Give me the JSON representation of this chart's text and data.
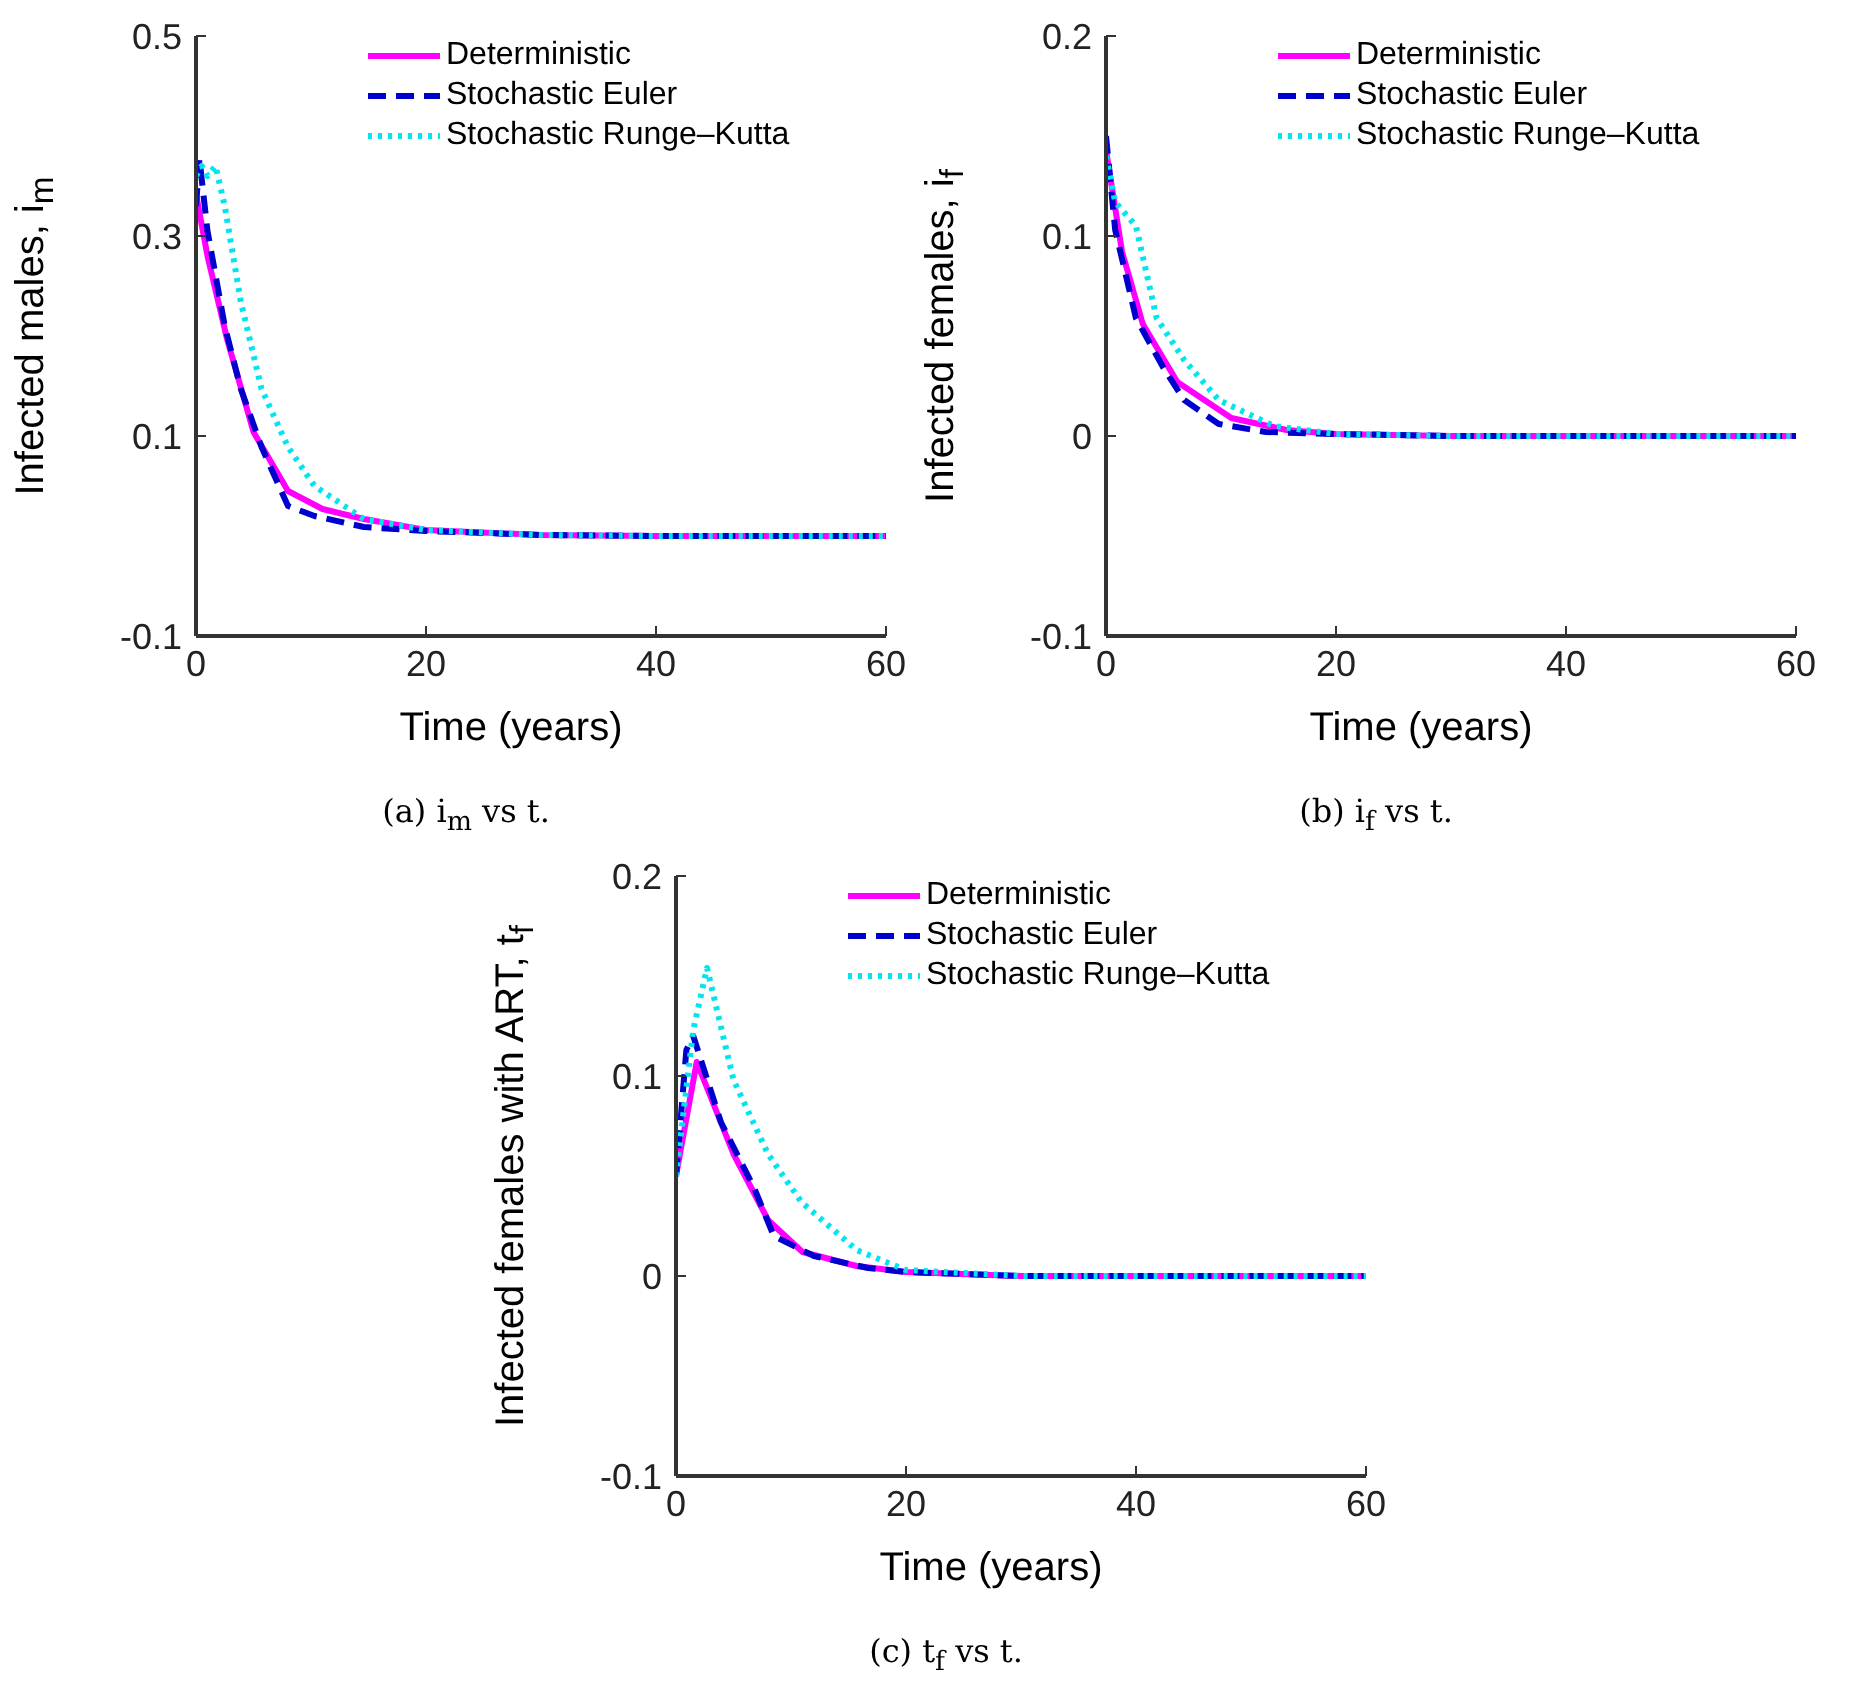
{
  "chart_data": [
    {
      "type": "line",
      "xlabel": "Time (years)",
      "ylabel": "Infected males, i$_{m}$",
      "xlim": [
        0,
        60
      ],
      "xticks": [
        0,
        20,
        40,
        60
      ],
      "ylim": [
        -0.1,
        0.5
      ],
      "yticks": [
        -0.1,
        0.1,
        0.3,
        0.5
      ],
      "legend": "top right",
      "grid": false,
      "annotations": [
        "(a) i$_{m}$ vs t."
      ],
      "series": [
        {
          "name": "Deterministic",
          "color": "#ff00ff",
          "line_style": "solid",
          "x": [
            0,
            1,
            2.7,
            5,
            8,
            11,
            14.6,
            20,
            30,
            40,
            50,
            60
          ],
          "values": [
            0.342,
            0.28,
            0.197,
            0.104,
            0.045,
            0.027,
            0.017,
            0.006,
            0.001,
            0,
            0,
            0
          ]
        },
        {
          "name": "Stochastic  Euler",
          "color": "#0000cd",
          "line_style": "dashed",
          "x": [
            0,
            0.3,
            1,
            2.5,
            3.9,
            5.7,
            8,
            10.3,
            14.6,
            20,
            30,
            40,
            50,
            60
          ],
          "values": [
            0.33,
            0.377,
            0.305,
            0.21,
            0.147,
            0.089,
            0.03,
            0.02,
            0.009,
            0.005,
            0.001,
            0,
            0,
            0
          ]
        },
        {
          "name": "Stochastic Runge–Kutta",
          "color": "#00e5ee",
          "line_style": "dotted",
          "x": [
            0,
            0.5,
            1,
            1.7,
            2.5,
            3.9,
            5.7,
            8,
            10.3,
            14.6,
            20,
            30,
            40,
            50,
            60
          ],
          "values": [
            0.36,
            0.37,
            0.36,
            0.37,
            0.33,
            0.234,
            0.147,
            0.089,
            0.05,
            0.017,
            0.006,
            0.001,
            0,
            0,
            0
          ]
        }
      ]
    },
    {
      "type": "line",
      "xlabel": "Time (years)",
      "ylabel": "Infected females, i$_{f}$",
      "xlim": [
        0,
        60
      ],
      "xticks": [
        0,
        20,
        40,
        60
      ],
      "ylim": [
        -0.1,
        0.2
      ],
      "yticks": [
        -0.1,
        0,
        0.1,
        0.2
      ],
      "legend": "top right",
      "grid": false,
      "annotations": [
        "(b) i$_{f}$ vs t."
      ],
      "series": [
        {
          "name": "Deterministic",
          "color": "#ff00ff",
          "line_style": "solid",
          "x": [
            0,
            1.4,
            3.2,
            6.2,
            10.9,
            15.7,
            20,
            30,
            40,
            50,
            60
          ],
          "values": [
            0.143,
            0.092,
            0.056,
            0.027,
            0.009,
            0.003,
            0.001,
            0,
            0,
            0,
            0
          ]
        },
        {
          "name": "Stochastic  Euler",
          "color": "#0000cd",
          "line_style": "dashed",
          "x": [
            0,
            0.8,
            2.6,
            5,
            6.8,
            9.8,
            13.9,
            20,
            30,
            40,
            50,
            60
          ],
          "values": [
            0.15,
            0.103,
            0.059,
            0.034,
            0.018,
            0.006,
            0.002,
            0.001,
            0,
            0,
            0,
            0
          ]
        },
        {
          "name": "Stochastic Runge–Kutta",
          "color": "#00e5ee",
          "line_style": "dotted",
          "x": [
            0,
            0.8,
            2.6,
            4.4,
            6.8,
            9.8,
            14.6,
            20,
            30,
            40,
            50,
            60
          ],
          "values": [
            0.14,
            0.117,
            0.105,
            0.059,
            0.038,
            0.018,
            0.005,
            0.001,
            0,
            0,
            0,
            0
          ]
        }
      ]
    },
    {
      "type": "line",
      "xlabel": "Time (years)",
      "ylabel": "Infected females with ART, t$_{f}$",
      "xlim": [
        0,
        60
      ],
      "xticks": [
        0,
        20,
        40,
        60
      ],
      "ylim": [
        -0.1,
        0.2
      ],
      "yticks": [
        -0.1,
        0,
        0.1,
        0.2
      ],
      "legend": "top right",
      "grid": false,
      "annotations": [
        "(c) t$_{f}$ vs t."
      ],
      "series": [
        {
          "name": "Deterministic",
          "color": "#ff00ff",
          "line_style": "solid",
          "x": [
            0,
            1.8,
            5,
            8,
            11,
            15.7,
            20,
            30,
            40,
            50,
            60
          ],
          "values": [
            0.05,
            0.107,
            0.061,
            0.028,
            0.012,
            0.005,
            0.002,
            0,
            0,
            0,
            0
          ]
        },
        {
          "name": "Stochastic  Euler",
          "color": "#0000cd",
          "line_style": "dashed",
          "x": [
            0,
            0.9,
            1.5,
            3.9,
            6.8,
            8.5,
            12,
            16.7,
            20,
            30,
            40,
            50,
            60
          ],
          "values": [
            0.05,
            0.113,
            0.12,
            0.077,
            0.044,
            0.02,
            0.01,
            0.004,
            0.002,
            0,
            0,
            0,
            0
          ]
        },
        {
          "name": "Stochastic Runge–Kutta",
          "color": "#00e5ee",
          "line_style": "dotted",
          "x": [
            0,
            1.5,
            2.7,
            5,
            8,
            10.9,
            15.7,
            20,
            30,
            40,
            50,
            60
          ],
          "values": [
            0.05,
            0.123,
            0.154,
            0.098,
            0.061,
            0.037,
            0.013,
            0.003,
            0,
            0,
            0,
            0
          ]
        }
      ]
    }
  ]
}
